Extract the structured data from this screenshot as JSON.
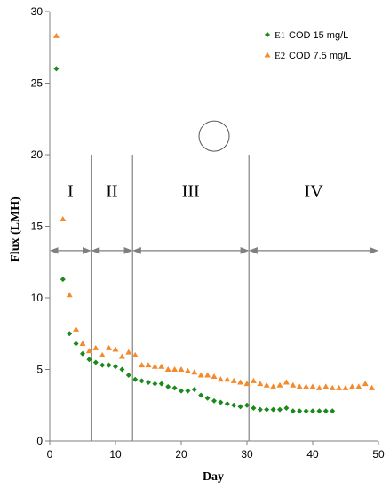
{
  "chart_data": {
    "type": "scatter",
    "title": "",
    "xlabel": "Day",
    "ylabel": "Flux (LMH)",
    "xlim": [
      0,
      50
    ],
    "ylim": [
      0,
      30
    ],
    "xticks": [
      "0",
      "10",
      "20",
      "30",
      "40",
      "50"
    ],
    "yticks": [
      "0",
      "5",
      "10",
      "15",
      "20",
      "25",
      "30"
    ],
    "grid": false,
    "legend_position": "top-right",
    "series": [
      {
        "name_prefix": "E1",
        "name": "COD 15 mg/L",
        "marker": "diamond",
        "color": "#1a8a1a",
        "x": [
          1,
          2,
          3,
          4,
          5,
          6,
          7,
          8,
          9,
          10,
          11,
          12,
          13,
          14,
          15,
          16,
          17,
          18,
          19,
          20,
          21,
          22,
          23,
          24,
          25,
          26,
          27,
          28,
          29,
          30,
          31,
          32,
          33,
          34,
          35,
          36,
          37,
          38,
          39,
          40,
          41,
          42,
          43
        ],
        "y": [
          26.0,
          11.3,
          7.5,
          6.8,
          6.1,
          5.7,
          5.5,
          5.3,
          5.3,
          5.2,
          5.0,
          4.6,
          4.3,
          4.2,
          4.1,
          4.0,
          4.0,
          3.8,
          3.7,
          3.5,
          3.5,
          3.6,
          3.2,
          3.0,
          2.8,
          2.7,
          2.6,
          2.5,
          2.4,
          2.5,
          2.3,
          2.2,
          2.2,
          2.2,
          2.2,
          2.3,
          2.1,
          2.1,
          2.1,
          2.1,
          2.1,
          2.1,
          2.1
        ]
      },
      {
        "name_prefix": "E2",
        "name": "COD 7.5 mg/L",
        "marker": "triangle",
        "color": "#f58a2b",
        "x": [
          1,
          2,
          3,
          4,
          5,
          6,
          7,
          8,
          9,
          10,
          11,
          12,
          13,
          14,
          15,
          16,
          17,
          18,
          19,
          20,
          21,
          22,
          23,
          24,
          25,
          26,
          27,
          28,
          29,
          30,
          31,
          32,
          33,
          34,
          35,
          36,
          37,
          38,
          39,
          40,
          41,
          42,
          43,
          44,
          45,
          46,
          47,
          48,
          49
        ],
        "y": [
          28.3,
          15.5,
          10.2,
          7.8,
          6.8,
          6.3,
          6.5,
          6.0,
          6.5,
          6.4,
          5.9,
          6.2,
          6.0,
          5.3,
          5.3,
          5.2,
          5.2,
          5.0,
          5.0,
          5.0,
          4.9,
          4.8,
          4.6,
          4.6,
          4.5,
          4.3,
          4.3,
          4.2,
          4.1,
          4.0,
          4.2,
          4.0,
          3.9,
          3.8,
          3.9,
          4.1,
          3.9,
          3.8,
          3.8,
          3.8,
          3.7,
          3.8,
          3.7,
          3.7,
          3.7,
          3.8,
          3.8,
          4.0,
          3.7
        ]
      }
    ],
    "phases": [
      {
        "label": "I",
        "start": 0,
        "end": 6.3
      },
      {
        "label": "II",
        "start": 6.3,
        "end": 12.6
      },
      {
        "label": "III",
        "start": 12.6,
        "end": 30.3
      },
      {
        "label": "IV",
        "start": 30.3,
        "end": 50
      }
    ],
    "phase_label_y": 17.5,
    "phase_arrow_y": 13.3,
    "phase_line_top_y": 20,
    "annotation_circle": {
      "x": 25,
      "y": 21.3
    }
  }
}
